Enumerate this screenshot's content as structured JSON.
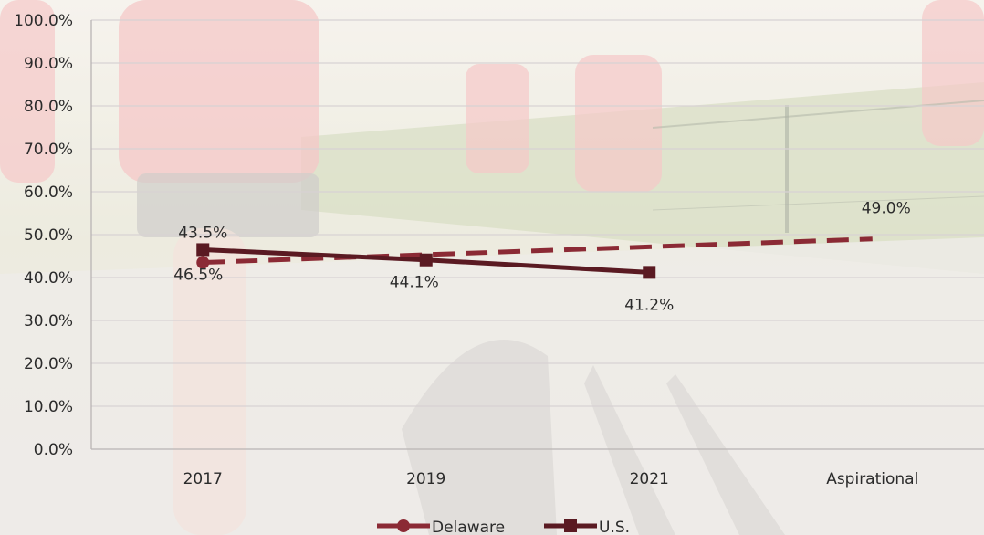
{
  "chart_data": {
    "type": "line",
    "categories": [
      "2017",
      "2019",
      "2021",
      "Aspirational"
    ],
    "y_ticks": [
      "0.0%",
      "10.0%",
      "20.0%",
      "30.0%",
      "40.0%",
      "50.0%",
      "60.0%",
      "70.0%",
      "80.0%",
      "90.0%",
      "100.0%"
    ],
    "ylim": [
      0,
      100
    ],
    "grid": true,
    "legend_position": "bottom",
    "series": [
      {
        "name": "Delaware",
        "color": "#8b2a35",
        "line_style": "dashed",
        "marker": "circle",
        "x": [
          "2017",
          "Aspirational"
        ],
        "values": [
          43.5,
          49.0
        ],
        "labels": [
          "43.5%",
          "49.0%"
        ]
      },
      {
        "name": "U.S.",
        "color": "#5a1a22",
        "line_style": "solid",
        "marker": "square",
        "x": [
          "2017",
          "2019",
          "2021"
        ],
        "values": [
          46.5,
          44.1,
          41.2
        ],
        "labels": [
          "46.5%",
          "44.1%",
          "41.2%"
        ]
      }
    ]
  }
}
